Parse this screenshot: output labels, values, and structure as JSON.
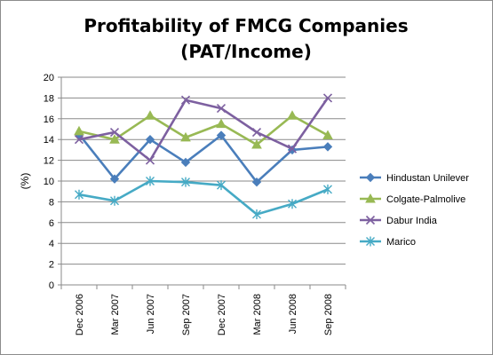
{
  "chart_data": {
    "type": "line",
    "title": [
      "Profitability of FMCG Companies",
      "(PAT/Income)"
    ],
    "xlabel": "",
    "ylabel": "(%)",
    "ylim": [
      0,
      20
    ],
    "yticks": [
      0,
      2,
      4,
      6,
      8,
      10,
      12,
      14,
      16,
      18,
      20
    ],
    "grid": "horizontal",
    "legend_position": "right",
    "categories": [
      "Dec 2006",
      "Mar 2007",
      "Jun 2007",
      "Sep 2007",
      "Dec 2007",
      "Mar 2008",
      "Jun 2008",
      "Sep 2008"
    ],
    "series": [
      {
        "name": "Hindustan Unilever",
        "color": "#4a7ebb",
        "marker": "diamond",
        "values": [
          14.5,
          10.2,
          14.0,
          11.8,
          14.4,
          9.9,
          13.0,
          13.3
        ]
      },
      {
        "name": "Colgate-Palmolive",
        "color": "#98b954",
        "marker": "triangle",
        "values": [
          14.8,
          14.0,
          16.3,
          14.2,
          15.5,
          13.5,
          16.3,
          14.4
        ]
      },
      {
        "name": "Dabur India",
        "color": "#7d60a0",
        "marker": "x",
        "values": [
          14.0,
          14.7,
          12.0,
          17.8,
          17.0,
          14.7,
          13.1,
          18.0
        ]
      },
      {
        "name": "Marico",
        "color": "#46aac5",
        "marker": "star",
        "values": [
          8.7,
          8.1,
          10.0,
          9.9,
          9.6,
          6.8,
          7.8,
          9.2
        ]
      }
    ]
  }
}
